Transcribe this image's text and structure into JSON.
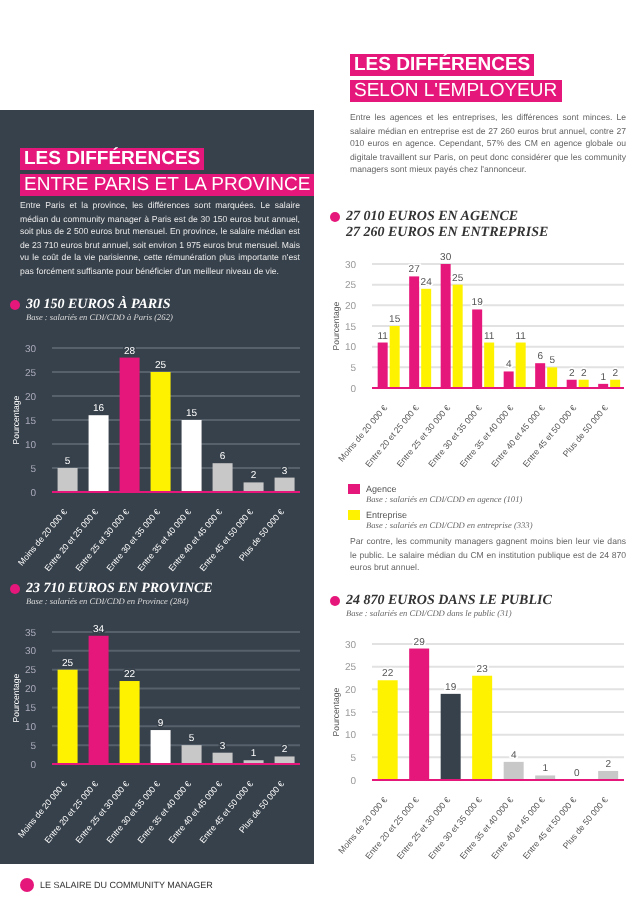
{
  "chart_data": [
    {
      "type": "bar",
      "title": "30 150 EUROS À PARIS",
      "subtitle": "Base : salariés en CDI/CDD à Paris (262)",
      "ylabel": "Pourcentage",
      "categories": [
        "Moins de 20 000 €",
        "Entre 20 et 25 000 €",
        "Entre 25 et 30 000 €",
        "Entre 30 et 35 000 €",
        "Entre 35 et 40 000 €",
        "Entre 40 et 45 000 €",
        "Entre 45 et 50 000 €",
        "Plus de 50 000 €"
      ],
      "values": [
        5,
        16,
        28,
        25,
        15,
        6,
        2,
        3
      ],
      "colors": [
        "#c8c8c8",
        "#ffffff",
        "#e6177b",
        "#fff200",
        "#ffffff",
        "#c8c8c8",
        "#c8c8c8",
        "#c8c8c8"
      ],
      "ylim": [
        0,
        30
      ],
      "yticks": [
        0,
        5,
        10,
        15,
        20,
        25,
        30
      ],
      "grid": "y",
      "data_labels": true,
      "annotations": [
        "LES DIFFÉRENCES",
        "ENTRE PARIS ET LA PROVINCE",
        "Entre Paris et la province, les différences sont marquées. Le salaire médian du community manager à Paris est de 30 150 euros brut annuel, soit plus de 2 500 euros brut mensuel. En province, le salaire médian est de 23 710 euros brut annuel, soit environ 1 975 euros brut mensuel. Mais vu le coût de la vie parisienne, cette rémunération plus importante n'est pas forcément suffisante pour bénéficier d'un meilleur niveau de vie."
      ]
    },
    {
      "type": "bar",
      "title": "23 710 EUROS EN PROVINCE",
      "subtitle": "Base : salariés en CDI/CDD en Province (284)",
      "ylabel": "Pourcentage",
      "categories": [
        "Moins de 20 000 €",
        "Entre 20 et 25 000 €",
        "Entre 25 et 30 000 €",
        "Entre 30 et 35 000 €",
        "Entre 35 et 40 000 €",
        "Entre 40 et 45 000 €",
        "Entre 45 et 50 000 €",
        "Plus de 50 000 €"
      ],
      "values": [
        25,
        34,
        22,
        9,
        5,
        3,
        1,
        2
      ],
      "colors": [
        "#fff200",
        "#e6177b",
        "#fff200",
        "#ffffff",
        "#c8c8c8",
        "#c8c8c8",
        "#c8c8c8",
        "#c8c8c8"
      ],
      "ylim": [
        0,
        35
      ],
      "yticks": [
        0,
        5,
        10,
        15,
        20,
        25,
        30,
        35
      ],
      "grid": "y",
      "data_labels": true
    },
    {
      "type": "bar",
      "title": "27 010 EUROS EN AGENCE\n27 260 EUROS EN ENTREPRISE",
      "ylabel": "Pourcentage",
      "categories": [
        "Moins de 20 000 €",
        "Entre 20 et 25 000 €",
        "Entre 25 et 30 000 €",
        "Entre 30 et 35 000 €",
        "Entre 35 et 40 000 €",
        "Entre 40 et 45 000 €",
        "Entre 45 et 50 000 €",
        "Plus de 50 000 €"
      ],
      "series": [
        {
          "name": "Agence",
          "color": "#e6177b",
          "values": [
            11,
            27,
            30,
            19,
            4,
            6,
            2,
            1
          ]
        },
        {
          "name": "Entreprise",
          "color": "#fff200",
          "values": [
            15,
            24,
            25,
            11,
            11,
            5,
            2,
            2
          ]
        }
      ],
      "ylim": [
        0,
        30
      ],
      "yticks": [
        0,
        5,
        10,
        15,
        20,
        25,
        30
      ],
      "grid": "y",
      "data_labels": true,
      "legend": "bottom",
      "annotations": [
        "LES DIFFÉRENCES",
        "SELON L'EMPLOYEUR",
        "Entre les agences et les entreprises, les différences sont minces. Le salaire médian en entreprise est de 27 260 euros brut annuel, contre 27 010 euros en agence. Cependant, 57% des CM en agence globale ou digitale travaillent sur Paris, on peut donc considérer que les community managers sont mieux payés chez l'annonceur.",
        "Base : salariés en CDI/CDD en agence (101)",
        "Base : salariés en CDI/CDD en entreprise (333)"
      ]
    },
    {
      "type": "bar",
      "title": "24 870 EUROS DANS LE PUBLIC",
      "subtitle": "Base : salariés en CDI/CDD dans le public (31)",
      "ylabel": "Pourcentage",
      "categories": [
        "Moins de 20 000 €",
        "Entre 20 et 25 000 €",
        "Entre 25 et 30 000 €",
        "Entre 30 et 35 000 €",
        "Entre 35 et 40 000 €",
        "Entre 40 et 45 000 €",
        "Entre 45 et 50 000 €",
        "Plus de 50 000 €"
      ],
      "values": [
        22,
        29,
        19,
        23,
        4,
        1,
        0,
        2
      ],
      "colors": [
        "#fff200",
        "#e6177b",
        "#37414b",
        "#fff200",
        "#c8c8c8",
        "#c8c8c8",
        "#c8c8c8",
        "#c8c8c8"
      ],
      "ylim": [
        0,
        30
      ],
      "yticks": [
        0,
        5,
        10,
        15,
        20,
        25,
        30
      ],
      "grid": "y",
      "data_labels": true,
      "annotations": [
        "Par contre, les community managers gagnent moins bien leur vie dans le public. Le salaire médian du CM en institution publique est de 24 870 euros brut annuel.",
        "LE SALAIRE DU COMMUNITY MANAGER"
      ]
    }
  ]
}
